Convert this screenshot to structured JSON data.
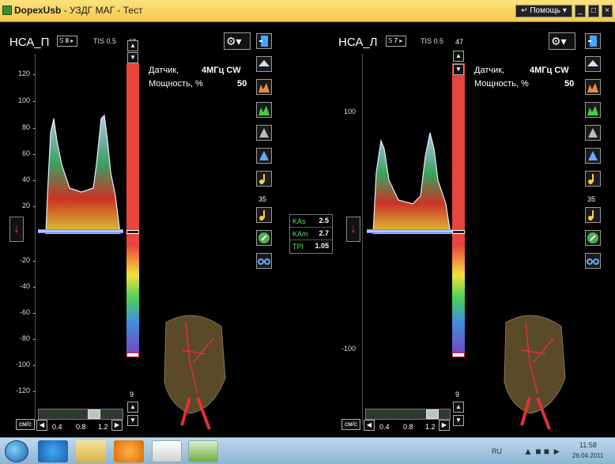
{
  "window": {
    "app_name": "DopexUsb",
    "title_suffix": "- УЗДГ МАГ - Тест",
    "help_label": "↵ Помощь ▾",
    "minimize": "_",
    "maximize": "□",
    "close": "×"
  },
  "left": {
    "channel": "НСА_П",
    "spin_prefix": "S",
    "spin_value": "8",
    "tis": "TIS 0.5",
    "scale_top": "47",
    "scale_mid": "35",
    "scale_bot": "9",
    "axis_labels": [
      "120",
      "100",
      "80",
      "60",
      "40",
      "20",
      "-20",
      "-40",
      "-60",
      "-80",
      "-100",
      "-120"
    ],
    "sensor_label": "Датчик,",
    "sensor_value": "4МГц CW",
    "power_label": "Мощность, %",
    "power_value": "50",
    "units": "см/с",
    "scale_labels": [
      "0.4",
      "0.8",
      "1.2"
    ],
    "direction_arrow": "↓"
  },
  "right": {
    "channel": "НСА_Л",
    "spin_prefix": "S",
    "spin_value": "7",
    "tis": "TIS 0.5",
    "scale_top": "47",
    "scale_mid": "35",
    "scale_bot": "9",
    "axis_labels": [
      "100",
      "-100"
    ],
    "sensor_label": "Датчик,",
    "sensor_value": "4МГц CW",
    "power_label": "Мощность, %",
    "power_value": "50",
    "units": "см/с",
    "scale_labels": [
      "0.4",
      "0.8",
      "1.2"
    ],
    "direction_arrow": "↓"
  },
  "stats": [
    {
      "name": "KAs",
      "value": "2.5"
    },
    {
      "name": "KAm",
      "value": "2.7"
    },
    {
      "name": "TPI",
      "value": "1.05"
    }
  ],
  "taskbar": {
    "lang": "RU",
    "time": "11:58",
    "date": "26.04.2011"
  },
  "colors": {
    "title_bar": "#f2c94e",
    "spectrum_bright": "#c7d8ff",
    "color_scale_top": "#e8453c"
  }
}
